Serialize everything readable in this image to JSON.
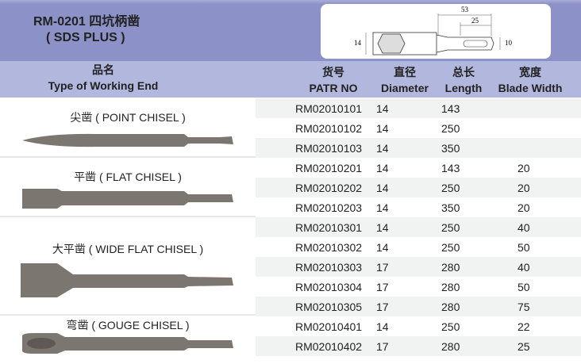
{
  "title": {
    "line1": "RM-0201 四坑柄凿",
    "line2": "( SDS PLUS )"
  },
  "drawing": {
    "dim_total": "53",
    "dim_shank": "25",
    "dim_hex": "14",
    "dim_tip": "10"
  },
  "header": {
    "name_cn": "品名",
    "name_en": "Type of Working End",
    "part_cn": "货号",
    "part_en": "PATR NO",
    "dia_cn": "直径",
    "dia_en": "Diameter",
    "len_cn": "总长",
    "len_en": "Length",
    "width_cn": "宽度",
    "width_en": "Blade Width"
  },
  "groups": [
    {
      "label": "尖凿 ( POINT CHISEL )"
    },
    {
      "label": "平凿 ( FLAT CHISEL )"
    },
    {
      "label": "大平凿 ( WIDE FLAT CHISEL )"
    },
    {
      "label": "弯凿 ( GOUGE CHISEL )"
    }
  ],
  "rows": [
    {
      "part": "RM02010101",
      "dia": "14",
      "len": "143",
      "width": ""
    },
    {
      "part": "RM02010102",
      "dia": "14",
      "len": "250",
      "width": ""
    },
    {
      "part": "RM02010103",
      "dia": "14",
      "len": "350",
      "width": ""
    },
    {
      "part": "RM02010201",
      "dia": "14",
      "len": "143",
      "width": "20"
    },
    {
      "part": "RM02010202",
      "dia": "14",
      "len": "250",
      "width": "20"
    },
    {
      "part": "RM02010203",
      "dia": "14",
      "len": "350",
      "width": "20"
    },
    {
      "part": "RM02010301",
      "dia": "14",
      "len": "250",
      "width": "40"
    },
    {
      "part": "RM02010302",
      "dia": "14",
      "len": "250",
      "width": "50"
    },
    {
      "part": "RM02010303",
      "dia": "17",
      "len": "280",
      "width": "40"
    },
    {
      "part": "RM02010304",
      "dia": "17",
      "len": "280",
      "width": "50"
    },
    {
      "part": "RM02010305",
      "dia": "17",
      "len": "280",
      "width": "75"
    },
    {
      "part": "RM02010401",
      "dia": "14",
      "len": "250",
      "width": "22"
    },
    {
      "part": "RM02010402",
      "dia": "17",
      "len": "280",
      "width": "25"
    }
  ]
}
